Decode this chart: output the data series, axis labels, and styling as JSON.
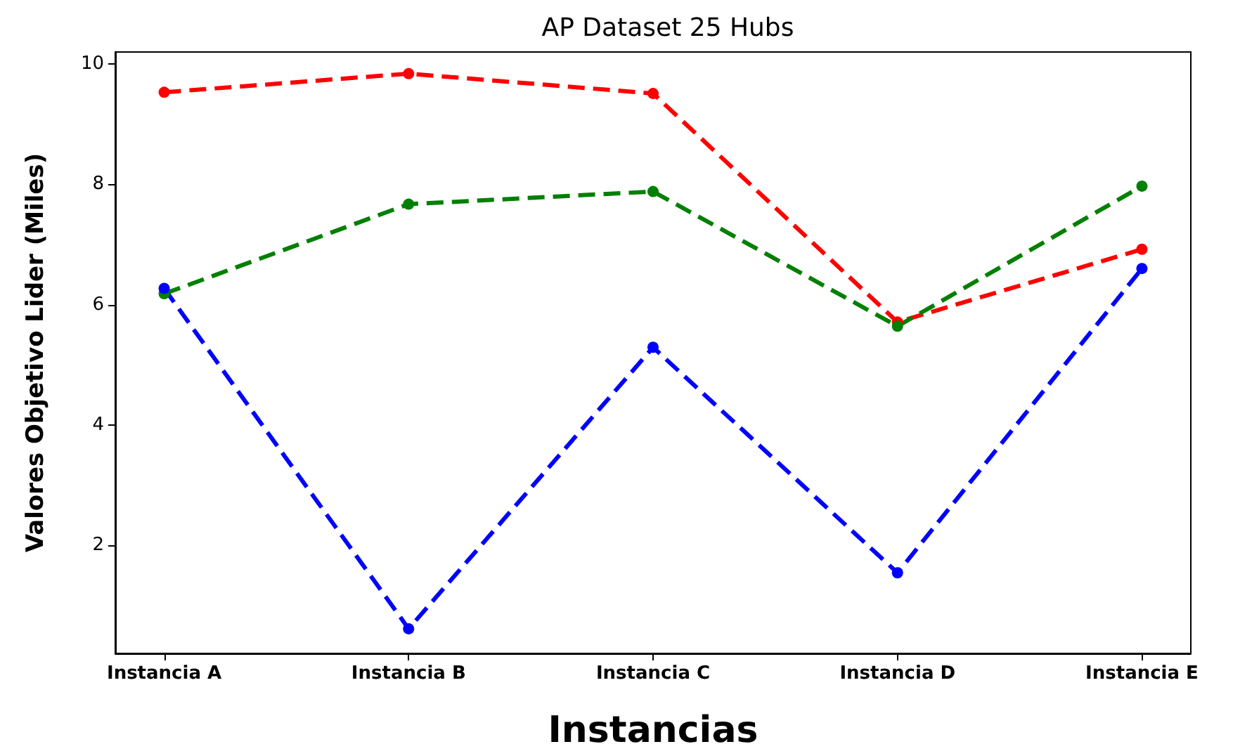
{
  "chart_data": {
    "type": "line",
    "title": "AP Dataset 25 Hubs",
    "xlabel": "Instancias",
    "ylabel": "Valores Objetivo Lider (Miles)",
    "categories": [
      "Instancia A",
      "Instancia B",
      "Instancia C",
      "Instancia D",
      "Instancia E"
    ],
    "series": [
      {
        "color": "#ff0000",
        "values": [
          9.53,
          9.84,
          9.51,
          5.71,
          6.92
        ]
      },
      {
        "color": "#008000",
        "values": [
          6.18,
          7.67,
          7.88,
          5.64,
          7.97
        ]
      },
      {
        "color": "#0000ff",
        "values": [
          6.27,
          0.61,
          5.29,
          1.54,
          6.6
        ]
      }
    ],
    "ylim": [
      0.2,
      10.2
    ],
    "yticks": [
      2,
      4,
      6,
      8,
      10
    ],
    "grid": false,
    "marker": "circle",
    "line_style": "dashed"
  }
}
